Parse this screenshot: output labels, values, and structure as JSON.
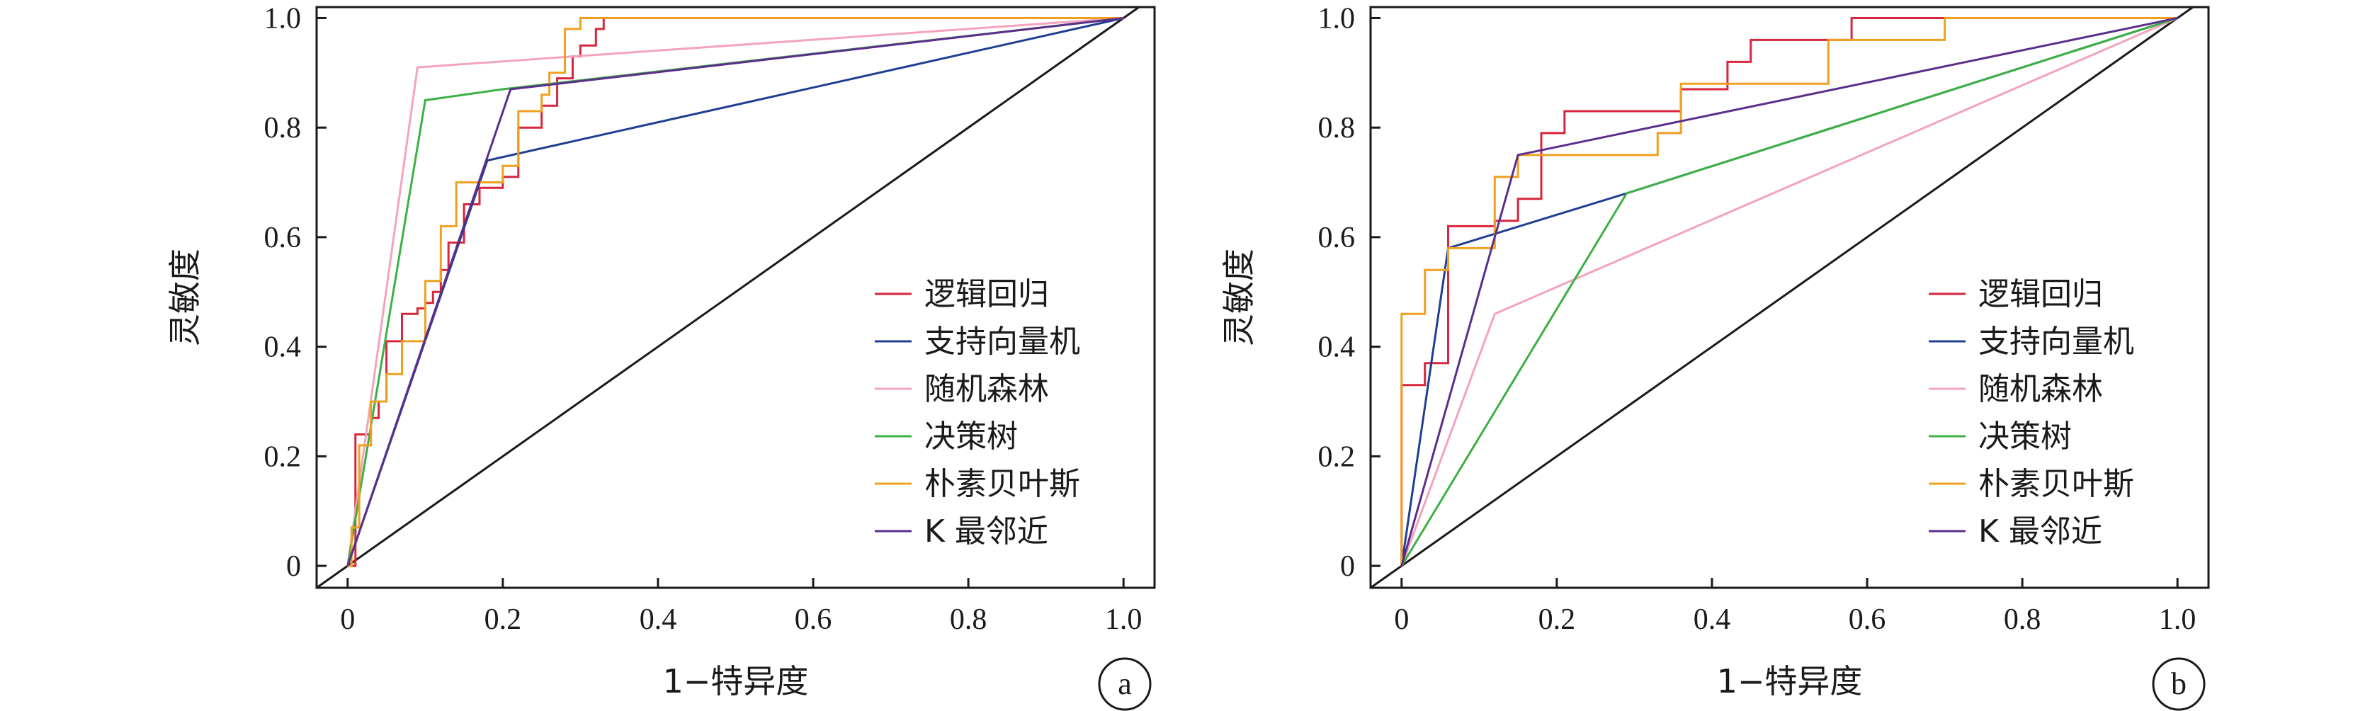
{
  "chart_data": [
    {
      "panel_label": "a",
      "type": "line",
      "xlabel": "1−特异度",
      "ylabel": "灵敏度",
      "xlim": [
        -0.04,
        1.04
      ],
      "ylim": [
        -0.04,
        1.02
      ],
      "xticks": [
        0,
        0.2,
        0.4,
        0.6,
        0.8,
        1.0
      ],
      "xtick_labels": [
        "0",
        "0.2",
        "0.4",
        "0.6",
        "0.8",
        "1.0"
      ],
      "yticks": [
        0,
        0.2,
        0.4,
        0.6,
        0.8,
        1.0
      ],
      "ytick_labels": [
        "0",
        "0.2",
        "0.4",
        "0.6",
        "0.8",
        "1.0"
      ],
      "grid": false,
      "legend_position": "bottom-right",
      "diagonal": {
        "x": [
          -0.04,
          1.04
        ],
        "y": [
          -0.04,
          1.04
        ],
        "color": "#1a1a1a"
      },
      "series": [
        {
          "name": "逻辑回归",
          "color": "#d7263d",
          "step": true,
          "x": [
            0,
            0.01,
            0.01,
            0.03,
            0.03,
            0.04,
            0.04,
            0.05,
            0.05,
            0.07,
            0.07,
            0.09,
            0.09,
            0.1,
            0.1,
            0.11,
            0.11,
            0.12,
            0.12,
            0.13,
            0.13,
            0.15,
            0.15,
            0.17,
            0.17,
            0.2,
            0.2,
            0.22,
            0.22,
            0.25,
            0.25,
            0.27,
            0.27,
            0.29,
            0.29,
            0.3,
            0.3,
            0.32,
            0.32,
            0.33,
            0.33,
            1.0
          ],
          "y": [
            0,
            0,
            0.24,
            0.24,
            0.27,
            0.27,
            0.3,
            0.3,
            0.41,
            0.41,
            0.46,
            0.46,
            0.47,
            0.47,
            0.48,
            0.48,
            0.5,
            0.5,
            0.54,
            0.54,
            0.59,
            0.59,
            0.66,
            0.66,
            0.69,
            0.69,
            0.71,
            0.71,
            0.8,
            0.8,
            0.84,
            0.84,
            0.89,
            0.89,
            0.93,
            0.93,
            0.95,
            0.95,
            0.98,
            0.98,
            1.0,
            1.0
          ]
        },
        {
          "name": "支持向量机",
          "color": "#1f3f91",
          "step": false,
          "x": [
            0,
            0.18,
            1.0
          ],
          "y": [
            0,
            0.74,
            1.0
          ]
        },
        {
          "name": "随机森林",
          "color": "#f4a3bd",
          "step": false,
          "x": [
            0,
            0.09,
            1.0
          ],
          "y": [
            0,
            0.91,
            1.0
          ]
        },
        {
          "name": "决策树",
          "color": "#3cb044",
          "step": false,
          "x": [
            0,
            0.1,
            0.2,
            1.0
          ],
          "y": [
            0,
            0.85,
            0.87,
            1.0
          ]
        },
        {
          "name": "朴素贝叶斯",
          "color": "#f0a020",
          "step": true,
          "x": [
            0,
            0.005,
            0.005,
            0.015,
            0.015,
            0.03,
            0.03,
            0.05,
            0.05,
            0.07,
            0.07,
            0.1,
            0.1,
            0.12,
            0.12,
            0.14,
            0.14,
            0.2,
            0.2,
            0.22,
            0.22,
            0.25,
            0.25,
            0.26,
            0.26,
            0.28,
            0.28,
            0.3,
            0.3,
            1.0
          ],
          "y": [
            0,
            0,
            0.07,
            0.07,
            0.22,
            0.22,
            0.3,
            0.3,
            0.35,
            0.35,
            0.41,
            0.41,
            0.52,
            0.52,
            0.62,
            0.62,
            0.7,
            0.7,
            0.73,
            0.73,
            0.83,
            0.83,
            0.86,
            0.86,
            0.9,
            0.9,
            0.98,
            0.98,
            1.0,
            1.0
          ]
        },
        {
          "name": "K 最邻近",
          "color": "#5b2e8c",
          "step": false,
          "x": [
            0,
            0.21,
            1.0
          ],
          "y": [
            0,
            0.87,
            1.0
          ]
        }
      ]
    },
    {
      "panel_label": "b",
      "type": "line",
      "xlabel": "1−特异度",
      "ylabel": "灵敏度",
      "xlim": [
        -0.04,
        1.04
      ],
      "ylim": [
        -0.04,
        1.02
      ],
      "xticks": [
        0,
        0.2,
        0.4,
        0.6,
        0.8,
        1.0
      ],
      "xtick_labels": [
        "0",
        "0.2",
        "0.4",
        "0.6",
        "0.8",
        "1.0"
      ],
      "yticks": [
        0,
        0.2,
        0.4,
        0.6,
        0.8,
        1.0
      ],
      "ytick_labels": [
        "0",
        "0.2",
        "0.4",
        "0.6",
        "0.8",
        "1.0"
      ],
      "grid": false,
      "legend_position": "bottom-right",
      "diagonal": {
        "x": [
          -0.04,
          1.04
        ],
        "y": [
          -0.04,
          1.04
        ],
        "color": "#1a1a1a"
      },
      "series": [
        {
          "name": "逻辑回归",
          "color": "#d7263d",
          "step": true,
          "x": [
            0,
            0,
            0.03,
            0.03,
            0.06,
            0.06,
            0.12,
            0.12,
            0.15,
            0.15,
            0.18,
            0.18,
            0.21,
            0.21,
            0.27,
            0.27,
            0.36,
            0.36,
            0.42,
            0.42,
            0.45,
            0.45,
            0.58,
            0.58,
            1.0
          ],
          "y": [
            0,
            0.33,
            0.33,
            0.37,
            0.37,
            0.62,
            0.62,
            0.63,
            0.63,
            0.67,
            0.67,
            0.79,
            0.79,
            0.83,
            0.83,
            0.83,
            0.83,
            0.87,
            0.87,
            0.92,
            0.92,
            0.96,
            0.96,
            1.0,
            1.0
          ]
        },
        {
          "name": "支持向量机",
          "color": "#1f3f91",
          "step": false,
          "x": [
            0,
            0.06,
            0.29,
            1.0
          ],
          "y": [
            0,
            0.58,
            0.68,
            1.0
          ]
        },
        {
          "name": "随机森林",
          "color": "#f4a3bd",
          "step": false,
          "x": [
            0,
            0.12,
            1.0
          ],
          "y": [
            0,
            0.46,
            1.0
          ]
        },
        {
          "name": "决策树",
          "color": "#3cb044",
          "step": false,
          "x": [
            0,
            0.29,
            1.0
          ],
          "y": [
            0,
            0.68,
            1.0
          ]
        },
        {
          "name": "朴素贝叶斯",
          "color": "#f0a020",
          "step": true,
          "x": [
            0,
            0,
            0.03,
            0.03,
            0.06,
            0.06,
            0.12,
            0.12,
            0.15,
            0.15,
            0.21,
            0.21,
            0.33,
            0.33,
            0.36,
            0.36,
            0.55,
            0.55,
            0.7,
            0.7,
            1.0
          ],
          "y": [
            0,
            0.46,
            0.46,
            0.54,
            0.54,
            0.58,
            0.58,
            0.71,
            0.71,
            0.75,
            0.75,
            0.75,
            0.75,
            0.79,
            0.79,
            0.88,
            0.88,
            0.96,
            0.96,
            1.0,
            1.0
          ]
        },
        {
          "name": "K 最邻近",
          "color": "#5b2e8c",
          "step": false,
          "x": [
            0,
            0.15,
            1.0
          ],
          "y": [
            0,
            0.75,
            1.0
          ]
        }
      ]
    }
  ]
}
